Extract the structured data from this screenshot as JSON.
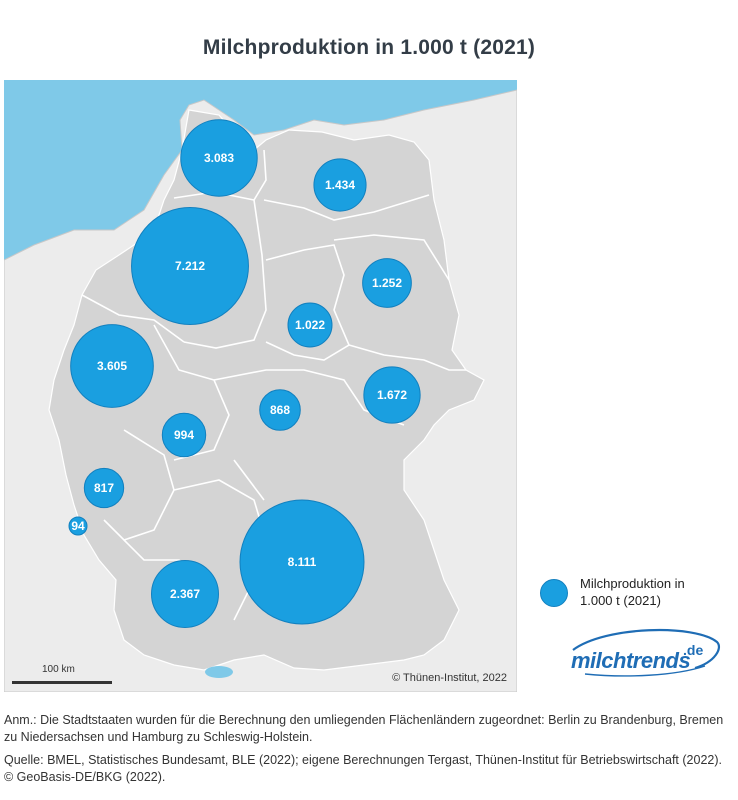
{
  "title": "Milchproduktion in 1.000 t (2021)",
  "map": {
    "copyright": "© Thünen-Institut, 2022",
    "scale_label": "100 km",
    "bubble_color": "#1a9fe0",
    "land_color": "#d4d4d4",
    "water_color": "#7fc9e8",
    "bubbles": [
      {
        "name": "bubble-schleswig-holstein",
        "label": "3.083",
        "value": 3083
      },
      {
        "name": "bubble-mecklenburg-vorpommern",
        "label": "1.434",
        "value": 1434
      },
      {
        "name": "bubble-niedersachsen",
        "label": "7.212",
        "value": 7212
      },
      {
        "name": "bubble-brandenburg",
        "label": "1.252",
        "value": 1252
      },
      {
        "name": "bubble-sachsen-anhalt",
        "label": "1.022",
        "value": 1022
      },
      {
        "name": "bubble-nordrhein-westfalen",
        "label": "3.605",
        "value": 3605
      },
      {
        "name": "bubble-thueringen",
        "label": "868",
        "value": 868
      },
      {
        "name": "bubble-sachsen",
        "label": "1.672",
        "value": 1672
      },
      {
        "name": "bubble-hessen",
        "label": "994",
        "value": 994
      },
      {
        "name": "bubble-rheinland-pfalz",
        "label": "817",
        "value": 817
      },
      {
        "name": "bubble-saarland",
        "label": "94",
        "value": 94
      },
      {
        "name": "bubble-bayern",
        "label": "8.111",
        "value": 8111
      },
      {
        "name": "bubble-baden-wuerttemberg",
        "label": "2.367",
        "value": 2367
      }
    ]
  },
  "legend": {
    "line1": "Milchproduktion in",
    "line2": "1.000 t (2021)"
  },
  "logo": {
    "word": "milchtrends",
    "sup": ".de"
  },
  "notes": {
    "annotation": "Anm.: Die Stadtstaaten wurden für die Berechnung den umliegenden Flächenländern zugeordnet: Berlin zu Brandenburg, Bremen zu Niedersachsen und Hamburg zu Schleswig-Holstein.",
    "source": "Quelle: BMEL, Statistisches Bundesamt, BLE (2022); eigene Berechnungen Tergast, Thünen-Institut für Betriebswirtschaft (2022).",
    "geo": "© GeoBasis-DE/BKG (2022)."
  }
}
